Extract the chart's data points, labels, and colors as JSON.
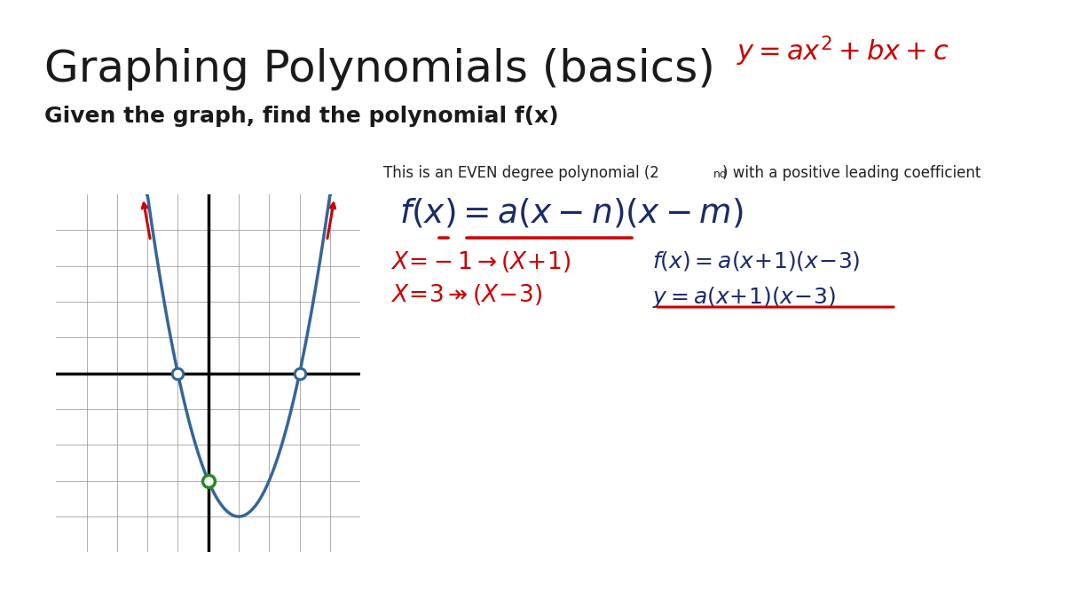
{
  "title": "Graphing Polynomials (basics)",
  "subtitle": "Given the graph, find the polynomial f(x)",
  "background_color": "#ffffff",
  "title_color": "#1a1a1a",
  "title_fontsize": 36,
  "subtitle_fontsize": 18,
  "grid_xlim": [
    -5,
    5
  ],
  "grid_ylim": [
    -5,
    5
  ],
  "poly_color": "#336699",
  "label_red": "#cc0000",
  "label_green": "#228B22",
  "label_blue": "#1a2a6a",
  "note_text1": "This is an EVEN degree polynomial (2",
  "note_sup": "nd",
  "note_text2": ") with a positive leading coefficient"
}
